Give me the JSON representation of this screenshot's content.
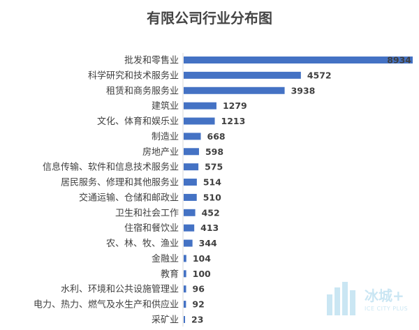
{
  "chart_data": {
    "type": "bar",
    "orientation": "horizontal",
    "title": "有限公司行业分布图",
    "xlabel": "",
    "ylabel": "",
    "xlim": [
      0,
      8934
    ],
    "grid": false,
    "bar_color": "#4472c4",
    "categories": [
      "批发和零售业",
      "科学研究和技术服务业",
      "租赁和商务服务业",
      "建筑业",
      "文化、体育和娱乐业",
      "制造业",
      "房地产业",
      "信息传输、软件和信息技术服务业",
      "居民服务、修理和其他服务业",
      "交通运输、仓储和邮政业",
      "卫生和社会工作",
      "住宿和餐饮业",
      "农、林、牧、渔业",
      "金融业",
      "教育",
      "水利、环境和公共设施管理业",
      "电力、热力、燃气及水生产和供应业",
      "采矿业"
    ],
    "values": [
      8934,
      4572,
      3938,
      1279,
      1213,
      668,
      598,
      575,
      514,
      510,
      452,
      413,
      344,
      104,
      100,
      96,
      92,
      23
    ]
  },
  "watermark": {
    "name": "冰城+",
    "sub": "ICE CITY PLUS",
    "color": "#9fd2ea"
  }
}
